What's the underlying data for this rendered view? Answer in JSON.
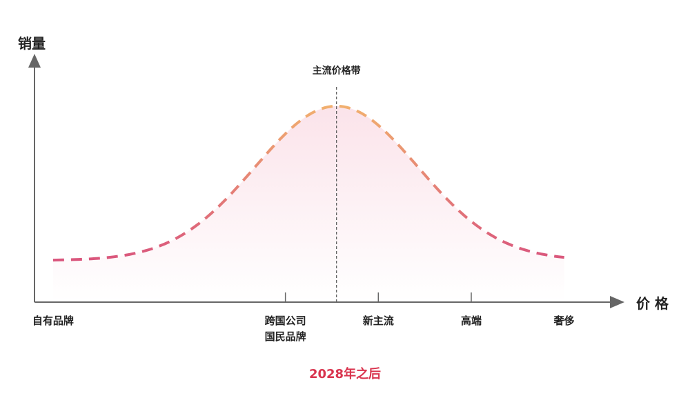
{
  "chart_data": {
    "type": "area",
    "ylabel": "销量",
    "xlabel": "价 格",
    "peak_label": "主流价格带",
    "caption": "2028年之后",
    "categories": [
      {
        "lines": [
          "自有品牌"
        ],
        "x": 0
      },
      {
        "lines": [
          "跨国公司",
          "国民品牌"
        ],
        "x": 5
      },
      {
        "lines": [
          "新主流"
        ],
        "x": 7
      },
      {
        "lines": [
          "高端"
        ],
        "x": 9
      },
      {
        "lines": [
          "奢侈"
        ],
        "x": 11
      }
    ],
    "curve": {
      "shape": "bell",
      "peak_x": 6.1,
      "spread": 1.75,
      "baseline": 0.0,
      "peak": 1.0
    },
    "xlim": [
      -0.4,
      12
    ],
    "ylim": [
      -0.27,
      1.33
    ],
    "grid": false,
    "colors": {
      "axis": "#666666",
      "curve_low": "#d9557d",
      "curve_high": "#f2b36e",
      "fill": "#fbe3ea",
      "caption": "#d9344e",
      "text": "#222222",
      "divider": "#555555"
    }
  }
}
